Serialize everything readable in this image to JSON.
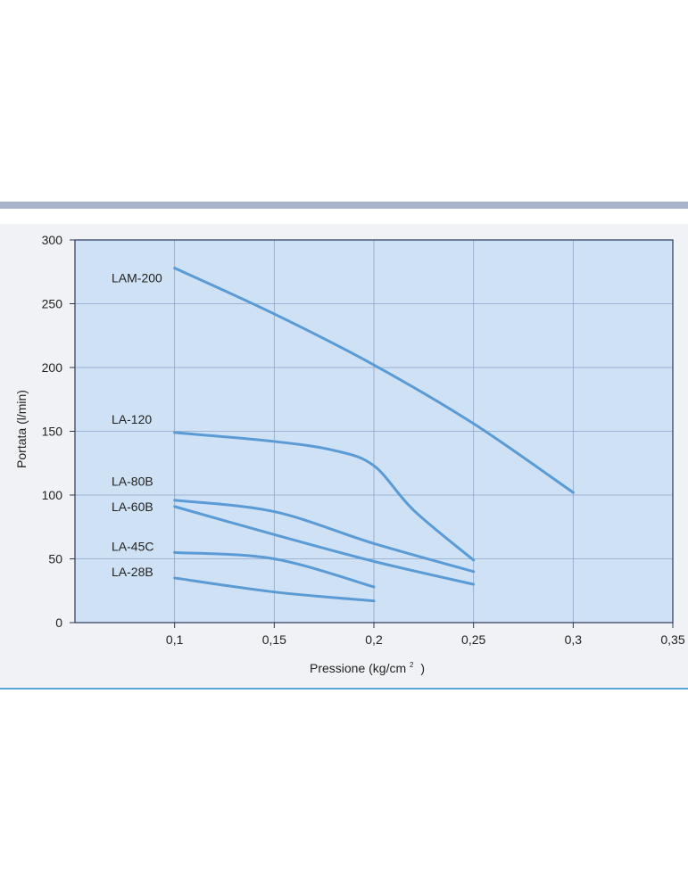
{
  "chart_data": {
    "type": "line",
    "xlabel": "Pressione (kg/cm",
    "xlabel_sup": "2",
    "xlabel_close": ")",
    "ylabel": "Portata (l/min)",
    "xlim": [
      0.05,
      0.35
    ],
    "ylim": [
      0,
      300
    ],
    "x_ticks": [
      0.1,
      0.15,
      0.2,
      0.25,
      0.3,
      0.35
    ],
    "x_tick_labels": [
      "0,1",
      "0,15",
      "0,2",
      "0,25",
      "0,3",
      "0,35"
    ],
    "y_ticks": [
      0,
      50,
      100,
      150,
      200,
      250,
      300
    ],
    "y_tick_labels": [
      "0",
      "50",
      "100",
      "150",
      "200",
      "250",
      "300"
    ],
    "grid": true,
    "colors": {
      "plot_bg": "#cfe1f5",
      "line": "#5b9bd5",
      "grid": "#8ea4c4",
      "axis": "#2b3a55"
    },
    "series": [
      {
        "name": "LAM-200",
        "x": [
          0.1,
          0.15,
          0.2,
          0.25,
          0.3
        ],
        "y": [
          278,
          242,
          202,
          156,
          102
        ]
      },
      {
        "name": "LA-120",
        "x": [
          0.1,
          0.15,
          0.18,
          0.2,
          0.22,
          0.25
        ],
        "y": [
          149,
          142,
          135,
          123,
          88,
          49
        ]
      },
      {
        "name": "LA-80B",
        "x": [
          0.1,
          0.15,
          0.2,
          0.25
        ],
        "y": [
          96,
          87,
          62,
          40
        ]
      },
      {
        "name": "LA-60B",
        "x": [
          0.1,
          0.15,
          0.2,
          0.25
        ],
        "y": [
          91,
          69,
          48,
          30
        ]
      },
      {
        "name": "LA-45C",
        "x": [
          0.1,
          0.15,
          0.2
        ],
        "y": [
          55,
          50,
          28
        ]
      },
      {
        "name": "LA-28B",
        "x": [
          0.1,
          0.15,
          0.2
        ],
        "y": [
          35,
          24,
          17
        ]
      }
    ]
  }
}
